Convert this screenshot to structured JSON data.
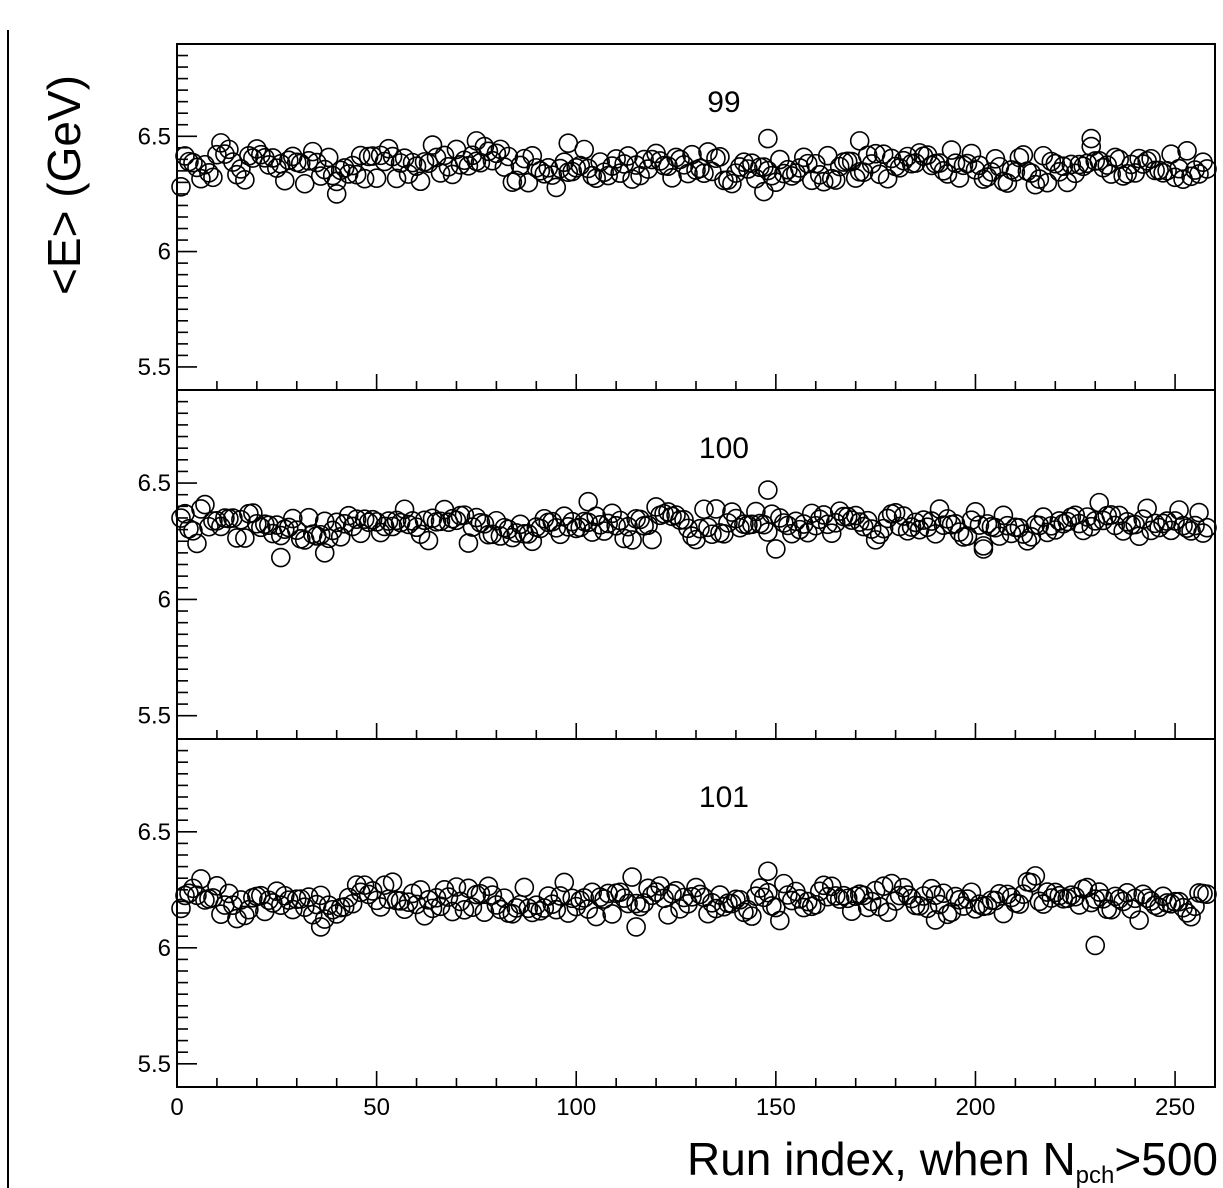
{
  "chart_data": {
    "type": "scatter",
    "xlabel": {
      "main": "Run index, when N",
      "sub": "pch",
      "suffix": ">500"
    },
    "ylabel": "<E>  (GeV)",
    "xlim": [
      0,
      260
    ],
    "ylim": [
      5.4,
      6.9
    ],
    "x_ticks": [
      0,
      50,
      100,
      150,
      200,
      250
    ],
    "y_ticks": [
      5.5,
      6,
      6.5
    ],
    "x_tick_labels": [
      "0",
      "50",
      "100",
      "150",
      "200",
      "250"
    ],
    "y_tick_labels": [
      "5.5",
      "6",
      "6.5"
    ],
    "marker": "open-circle",
    "panels": [
      {
        "label": "99",
        "mean": 6.37,
        "spread": 0.035,
        "outliers": [
          [
            40,
            6.25
          ],
          [
            75,
            6.48
          ],
          [
            98,
            6.47
          ],
          [
            147,
            6.26
          ],
          [
            148,
            6.49
          ],
          [
            171,
            6.48
          ],
          [
            229,
            6.49
          ]
        ]
      },
      {
        "label": "100",
        "mean": 6.32,
        "spread": 0.035,
        "outliers": [
          [
            26,
            6.18
          ],
          [
            37,
            6.2
          ],
          [
            103,
            6.42
          ],
          [
            148,
            6.47
          ],
          [
            202,
            6.23
          ]
        ]
      },
      {
        "label": "101",
        "mean": 6.21,
        "spread": 0.035,
        "outliers": [
          [
            36,
            6.09
          ],
          [
            115,
            6.09
          ],
          [
            148,
            6.33
          ],
          [
            190,
            6.12
          ],
          [
            230,
            6.01
          ]
        ]
      }
    ]
  }
}
